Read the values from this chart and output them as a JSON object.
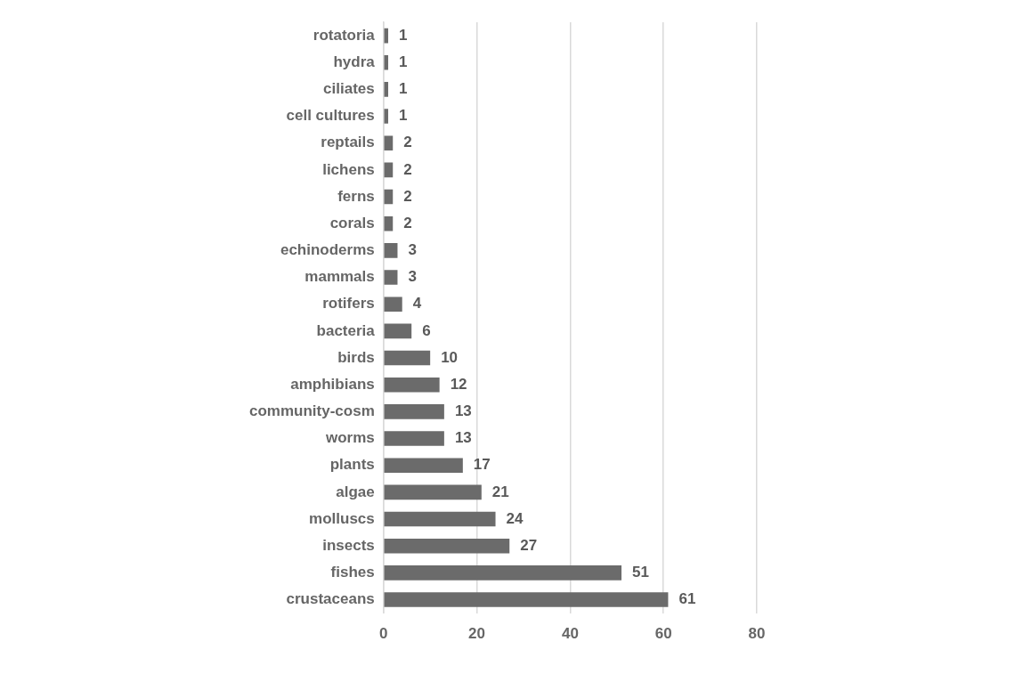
{
  "chart_data": {
    "type": "bar",
    "orientation": "horizontal",
    "categories": [
      "rotatoria",
      "hydra",
      "ciliates",
      "cell cultures",
      "reptails",
      "lichens",
      "ferns",
      "corals",
      "echinoderms",
      "mammals",
      "rotifers",
      "bacteria",
      "birds",
      "amphibians",
      "community-cosm",
      "worms",
      "plants",
      "algae",
      "molluscs",
      "insects",
      "fishes",
      "crustaceans"
    ],
    "values": [
      1,
      1,
      1,
      1,
      2,
      2,
      2,
      2,
      3,
      3,
      4,
      6,
      10,
      12,
      13,
      13,
      17,
      21,
      24,
      27,
      51,
      61
    ],
    "color": "#6b6b6b",
    "xlim": [
      0,
      80
    ],
    "xticks": [
      0,
      20,
      40,
      60,
      80
    ],
    "grid": "x",
    "data_labels": true,
    "legend": false
  }
}
